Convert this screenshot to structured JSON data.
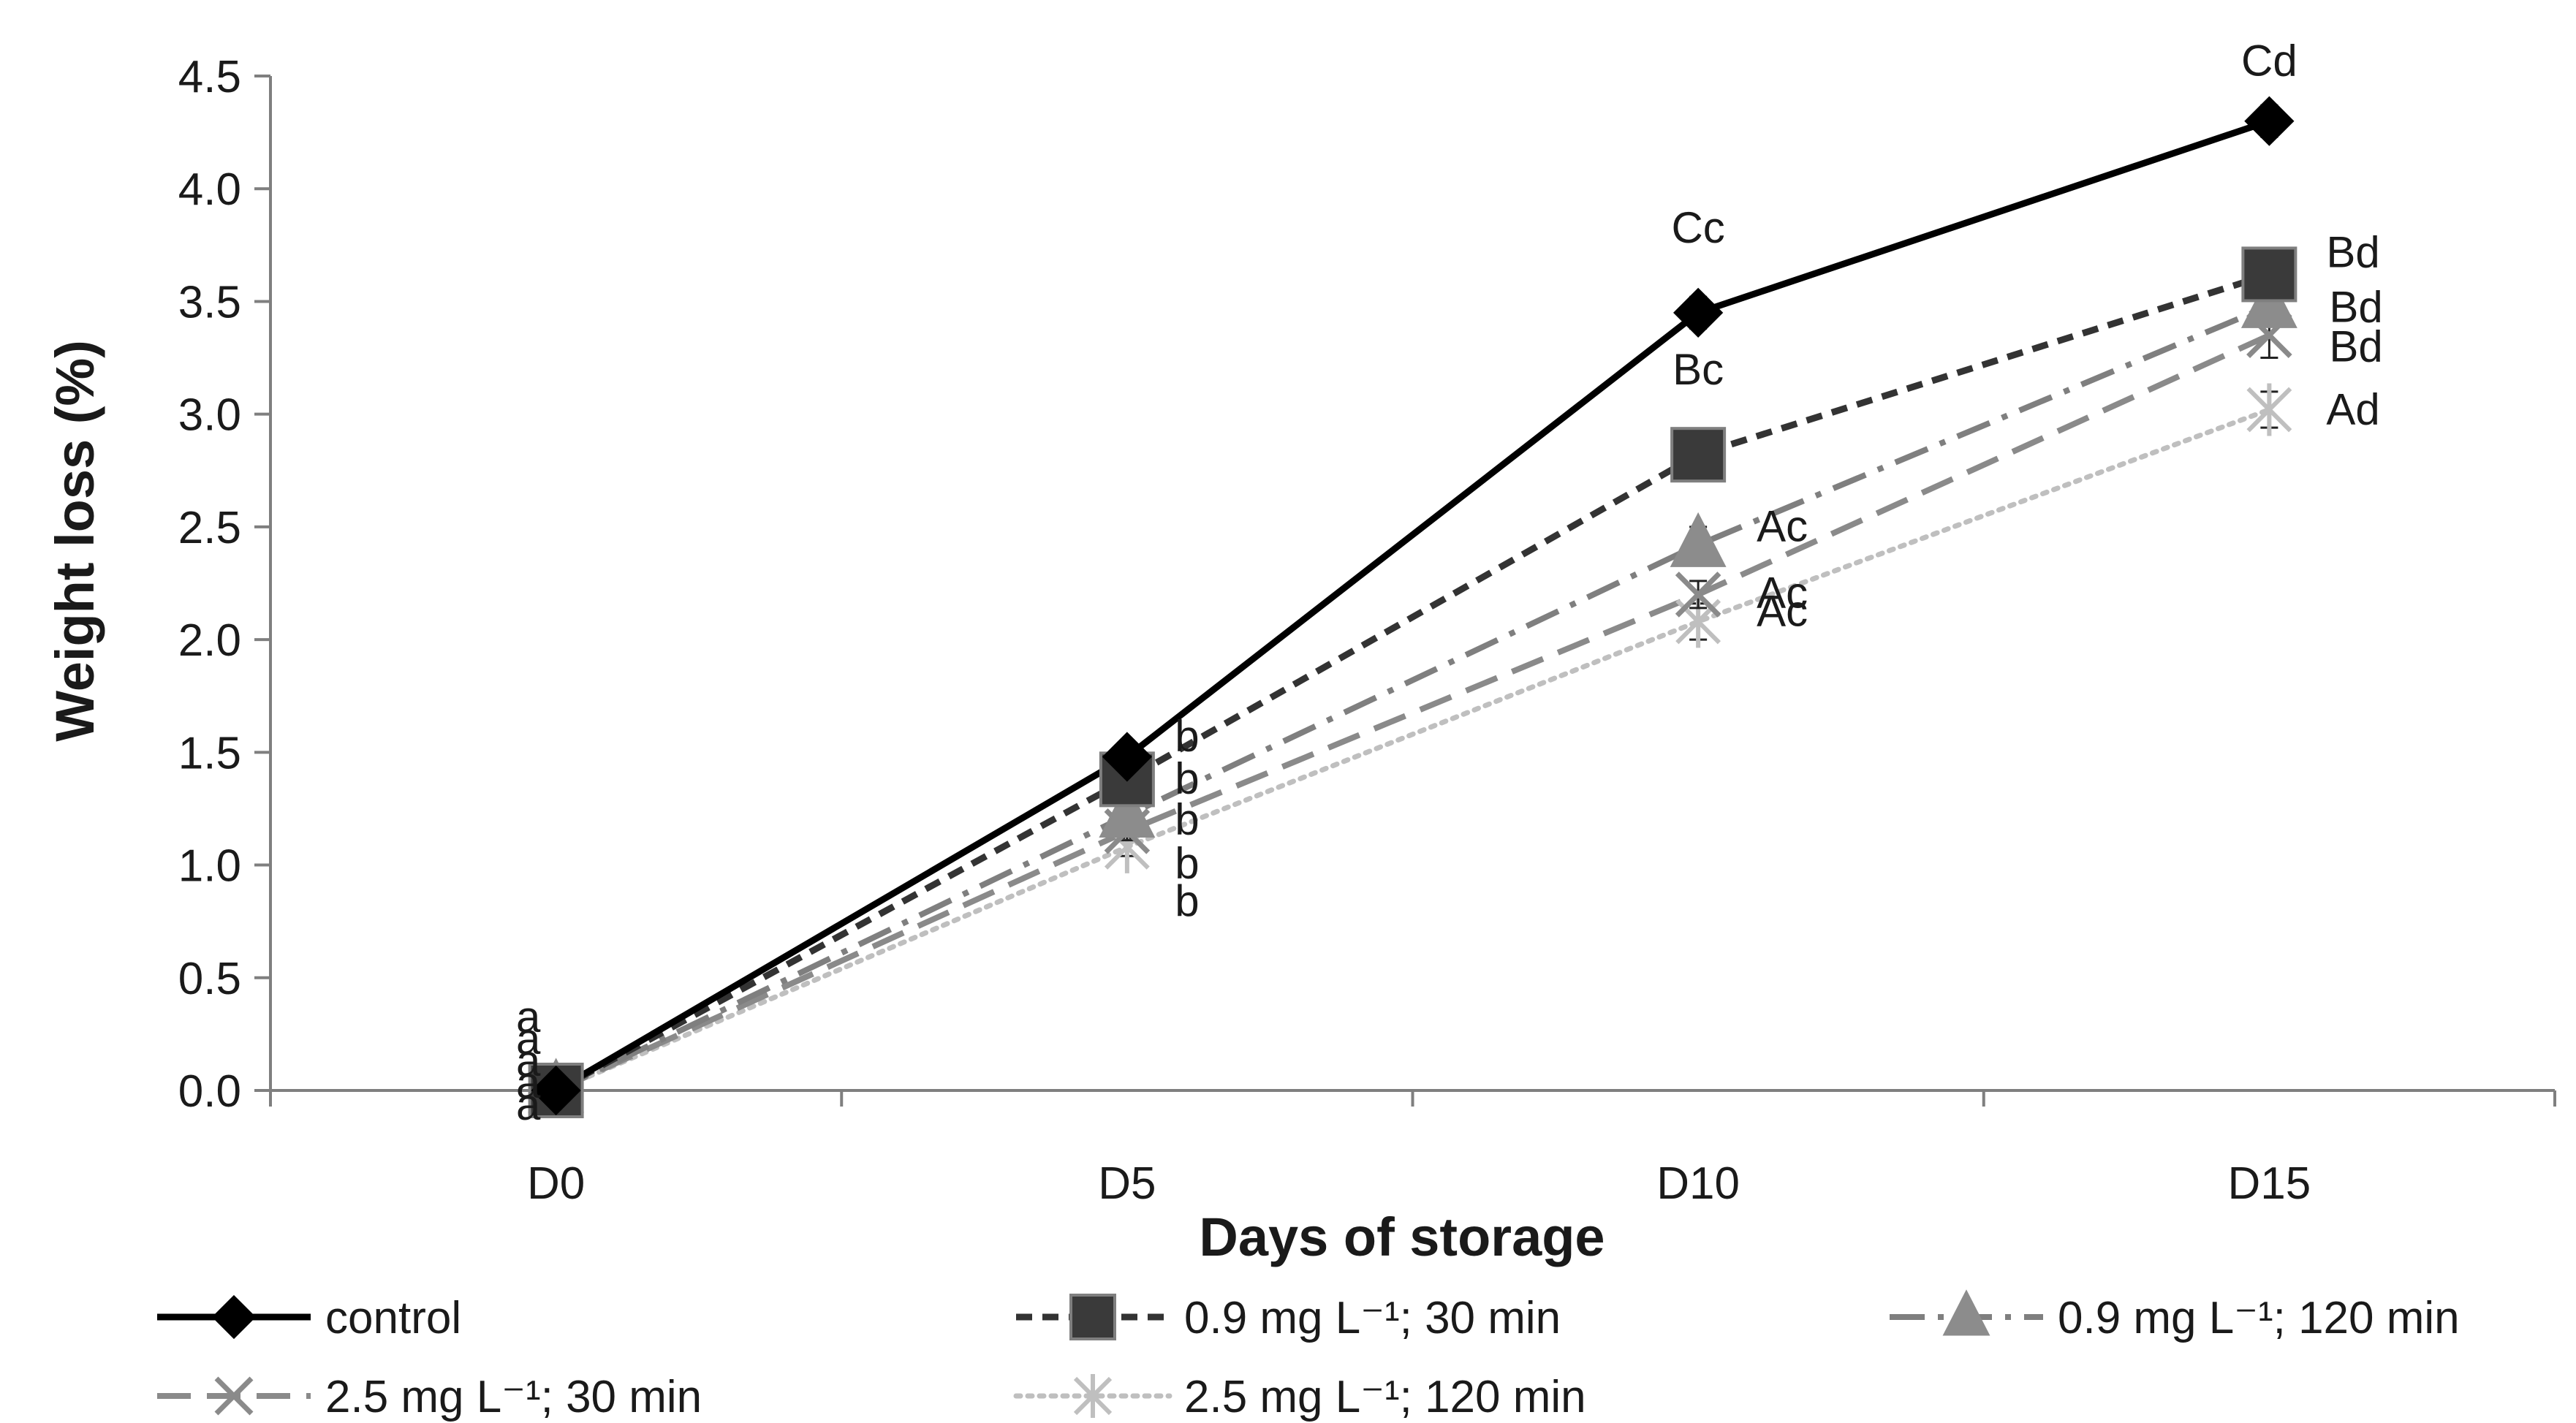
{
  "chart_data": {
    "type": "line",
    "title": "",
    "xlabel": "Days of storage",
    "ylabel": "Weight loss (%)",
    "categories": [
      "D0",
      "D5",
      "D10",
      "D15"
    ],
    "ylim": [
      0,
      4.5
    ],
    "yticks": [
      "0.0",
      "0.5",
      "1.0",
      "1.5",
      "2.0",
      "2.5",
      "3.0",
      "3.5",
      "4.0",
      "4.5"
    ],
    "grid": false,
    "legend": "bottom",
    "series": [
      {
        "name": "control",
        "values": [
          0,
          1.48,
          3.45,
          4.3
        ],
        "errors": [
          0.02,
          0.04,
          0.07,
          0.07
        ],
        "labels": [
          "a",
          "b",
          "Cc",
          "Cd"
        ],
        "marker": "diamond",
        "dash": "solid",
        "color": "#000000",
        "marker_fill": "#000000"
      },
      {
        "name": "0.9 mg L⁻¹; 30 min",
        "values": [
          0,
          1.38,
          2.82,
          3.62
        ],
        "errors": [
          0.02,
          0.04,
          0.05,
          0.06
        ],
        "labels": [
          "a",
          "b",
          "Bc",
          "Bd"
        ],
        "marker": "square",
        "dash": "dashed",
        "color": "#333333",
        "marker_fill": "#3a3a3a"
      },
      {
        "name": "0.9 mg L⁻¹; 120 min",
        "values": [
          0,
          1.22,
          2.42,
          3.48
        ],
        "errors": [
          0.02,
          0.04,
          0.08,
          0.06
        ],
        "labels": [
          "a",
          "b",
          "Ac",
          "Bd"
        ],
        "marker": "triangle",
        "dash": "dashdot",
        "color": "#7f7f7f",
        "marker_fill": "#8c8c8c"
      },
      {
        "name": "2.5 mg L⁻¹; 30 min",
        "values": [
          0,
          1.15,
          2.2,
          3.35
        ],
        "errors": [
          0.02,
          0.04,
          0.06,
          0.1
        ],
        "labels": [
          "a",
          "b",
          "Ac",
          "Bd"
        ],
        "marker": "x",
        "dash": "longdash",
        "color": "#8a8a8a",
        "marker_fill": "#8a8a8a"
      },
      {
        "name": "2.5 mg L⁻¹; 120 min",
        "values": [
          0,
          1.08,
          2.08,
          3.02
        ],
        "errors": [
          0.02,
          0.04,
          0.08,
          0.08
        ],
        "labels": [
          "a",
          "b",
          "Ac",
          "Ad"
        ],
        "marker": "star",
        "dash": "dotted",
        "color": "#bfbfbf",
        "marker_fill": "#c8c8c8"
      }
    ]
  }
}
